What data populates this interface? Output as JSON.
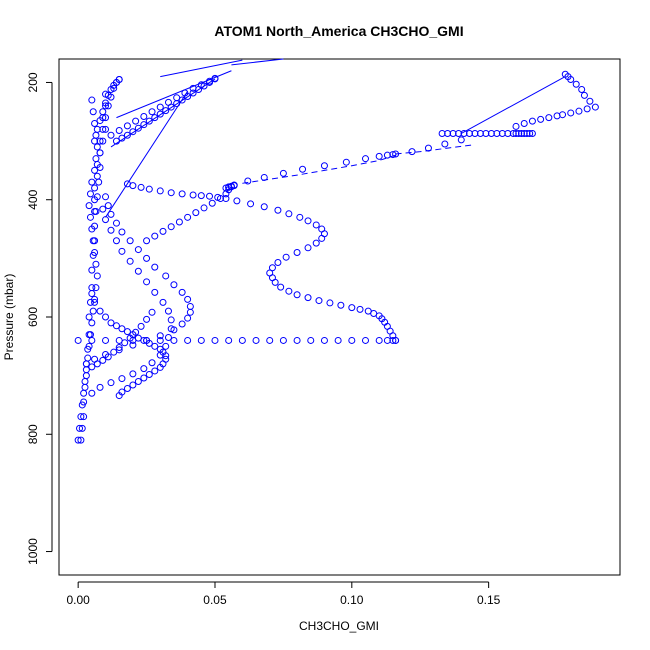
{
  "chart_data": {
    "type": "scatter",
    "title": "ATOM1 North_America CH3CHO_GMI",
    "xlabel": "CH3CHO_GMI",
    "ylabel": "Pressure (mbar)",
    "xlim": [
      -0.007,
      0.198
    ],
    "ylim": [
      1040,
      160
    ],
    "y_reversed": true,
    "grid": false,
    "legend": "none",
    "marker": "open-circle",
    "color": "#0000ff",
    "x_ticks": [
      0.0,
      0.05,
      0.1,
      0.15
    ],
    "x_tick_labels": [
      "0.00",
      "0.05",
      "0.10",
      "0.15"
    ],
    "y_ticks": [
      200,
      400,
      600,
      800,
      1000
    ],
    "y_tick_labels": [
      "200",
      "400",
      "600",
      "800",
      "1000"
    ],
    "series": [
      {
        "style": "points",
        "x": [
          0.001,
          0.0015,
          0.002,
          0.002,
          0.0025,
          0.003,
          0.003,
          0.0035,
          0.004,
          0.004,
          0.0045,
          0.005,
          0.005,
          0.0055,
          0.006,
          0.006,
          0.0065,
          0.007,
          0.0075,
          0.008,
          0.008,
          0.009,
          0.01,
          0.01,
          0.011,
          0.012,
          0.013,
          0.014,
          0.015
        ],
        "y": [
          810,
          790,
          770,
          745,
          720,
          700,
          680,
          655,
          630,
          600,
          575,
          550,
          520,
          495,
          470,
          445,
          420,
          395,
          370,
          345,
          320,
          300,
          280,
          260,
          240,
          225,
          210,
          200,
          195
        ]
      },
      {
        "style": "points",
        "x": [
          0.0,
          0.0005,
          0.001,
          0.0015,
          0.002,
          0.0025,
          0.003,
          0.0035,
          0.004,
          0.0045,
          0.005,
          0.0055,
          0.006,
          0.0065,
          0.007,
          0.0065,
          0.006,
          0.0055,
          0.005,
          0.0045,
          0.004,
          0.0045,
          0.005,
          0.006,
          0.0065,
          0.007,
          0.0065,
          0.006,
          0.0055,
          0.005
        ],
        "y": [
          810,
          790,
          770,
          750,
          730,
          710,
          690,
          670,
          650,
          630,
          610,
          590,
          570,
          550,
          530,
          510,
          490,
          470,
          450,
          430,
          410,
          390,
          370,
          350,
          330,
          310,
          290,
          270,
          250,
          230
        ]
      },
      {
        "style": "points",
        "x": [
          0.003,
          0.006,
          0.01,
          0.015,
          0.02,
          0.025,
          0.03,
          0.035,
          0.038,
          0.04,
          0.041,
          0.041,
          0.04,
          0.038,
          0.035,
          0.032,
          0.028,
          0.025,
          0.022,
          0.019,
          0.016,
          0.014,
          0.012,
          0.011,
          0.01
        ],
        "y": [
          680,
          672,
          664,
          656,
          648,
          640,
          632,
          622,
          612,
          602,
          592,
          582,
          570,
          558,
          545,
          530,
          515,
          500,
          485,
          470,
          455,
          440,
          425,
          410,
          395
        ]
      },
      {
        "style": "points",
        "x": [
          0.005,
          0.008,
          0.012,
          0.016,
          0.02,
          0.024,
          0.027,
          0.03,
          0.032,
          0.033,
          0.034,
          0.034,
          0.033,
          0.031,
          0.028,
          0.025,
          0.022,
          0.019,
          0.016,
          0.014,
          0.012,
          0.01,
          0.009
        ],
        "y": [
          730,
          720,
          712,
          705,
          697,
          688,
          678,
          665,
          650,
          635,
          620,
          605,
          590,
          575,
          558,
          540,
          522,
          505,
          488,
          470,
          452,
          434,
          416
        ]
      },
      {
        "style": "points",
        "x": [
          0.005,
          0.006,
          0.008,
          0.01,
          0.012,
          0.014,
          0.016,
          0.018,
          0.02,
          0.022,
          0.024,
          0.026,
          0.028,
          0.03,
          0.031,
          0.032,
          0.032,
          0.031,
          0.03,
          0.028,
          0.026,
          0.024,
          0.022,
          0.02,
          0.018,
          0.016,
          0.015
        ],
        "y": [
          560,
          575,
          590,
          600,
          610,
          615,
          620,
          625,
          630,
          636,
          640,
          645,
          650,
          655,
          660,
          666,
          672,
          680,
          686,
          692,
          698,
          704,
          710,
          716,
          722,
          728,
          734
        ]
      },
      {
        "style": "points",
        "x": [
          0.005,
          0.007,
          0.009,
          0.011,
          0.013,
          0.015,
          0.017,
          0.019,
          0.021,
          0.023,
          0.025,
          0.027
        ],
        "y": [
          685,
          680,
          674,
          668,
          660,
          652,
          644,
          636,
          626,
          616,
          604,
          592
        ]
      },
      {
        "style": "points",
        "x": [
          0.0,
          0.005,
          0.01,
          0.015,
          0.02,
          0.025,
          0.03,
          0.035,
          0.04,
          0.045,
          0.05,
          0.055,
          0.06,
          0.065,
          0.07,
          0.075,
          0.08,
          0.085,
          0.09,
          0.095,
          0.1,
          0.105,
          0.11,
          0.113,
          0.115,
          0.116
        ],
        "y": [
          640,
          640,
          640,
          640,
          640,
          640,
          640,
          640,
          640,
          640,
          640,
          640,
          640,
          640,
          640,
          640,
          640,
          640,
          640,
          640,
          640,
          640,
          640,
          640,
          640,
          640
        ]
      },
      {
        "style": "points",
        "x": [
          0.116,
          0.115,
          0.114,
          0.113,
          0.112,
          0.111,
          0.11,
          0.108,
          0.106,
          0.103,
          0.1,
          0.096,
          0.092,
          0.088,
          0.084,
          0.08,
          0.077,
          0.074,
          0.072,
          0.071,
          0.07,
          0.071,
          0.073,
          0.076,
          0.08,
          0.084,
          0.087,
          0.089,
          0.09,
          0.089,
          0.087,
          0.084,
          0.081,
          0.077,
          0.073,
          0.068,
          0.063,
          0.058,
          0.054,
          0.051,
          0.048,
          0.045,
          0.042,
          0.038,
          0.034,
          0.03,
          0.026,
          0.023,
          0.02,
          0.018
        ],
        "y": [
          640,
          632,
          624,
          616,
          609,
          603,
          598,
          594,
          590,
          587,
          584,
          580,
          576,
          572,
          567,
          562,
          556,
          549,
          541,
          533,
          525,
          516,
          507,
          498,
          490,
          482,
          474,
          466,
          458,
          450,
          443,
          436,
          430,
          424,
          418,
          412,
          407,
          402,
          398,
          396,
          394,
          393,
          392,
          390,
          388,
          385,
          382,
          379,
          376,
          373
        ]
      },
      {
        "style": "points",
        "x": [
          0.025,
          0.028,
          0.031,
          0.034,
          0.037,
          0.04,
          0.043,
          0.046,
          0.049,
          0.052,
          0.054,
          0.055,
          0.056,
          0.057
        ],
        "y": [
          470,
          462,
          454,
          446,
          438,
          430,
          422,
          414,
          406,
          398,
          390,
          383,
          378,
          375
        ]
      },
      {
        "style": "points",
        "x": [
          0.054,
          0.055,
          0.055,
          0.056,
          0.057
        ],
        "y": [
          380,
          379,
          378,
          377,
          376
        ]
      },
      {
        "style": "points",
        "x": [
          0.057,
          0.062,
          0.068,
          0.075,
          0.082,
          0.09,
          0.098,
          0.105,
          0.11,
          0.113,
          0.115,
          0.116,
          0.122,
          0.128,
          0.134,
          0.14
        ],
        "y": [
          375,
          368,
          362,
          355,
          348,
          342,
          336,
          330,
          326,
          324,
          323,
          322,
          318,
          312,
          305,
          298
        ]
      },
      {
        "style": "points",
        "x": [
          0.133,
          0.135,
          0.137,
          0.139,
          0.141,
          0.143,
          0.145,
          0.147,
          0.149,
          0.151,
          0.153,
          0.155,
          0.157,
          0.159,
          0.16,
          0.161,
          0.162,
          0.163,
          0.164,
          0.165,
          0.166
        ],
        "y": [
          287,
          287,
          287,
          287,
          287,
          287,
          287,
          287,
          287,
          287,
          287,
          287,
          287,
          287,
          287,
          287,
          287,
          287,
          287,
          287,
          287
        ]
      },
      {
        "style": "points",
        "x": [
          0.16,
          0.163,
          0.166,
          0.169,
          0.172,
          0.175,
          0.177,
          0.18,
          0.183,
          0.186,
          0.189,
          0.187,
          0.185,
          0.184,
          0.182,
          0.18,
          0.179,
          0.178
        ],
        "y": [
          275,
          270,
          266,
          263,
          260,
          257,
          255,
          252,
          249,
          245,
          242,
          232,
          222,
          212,
          203,
          195,
          190,
          186
        ]
      },
      {
        "style": "points",
        "x": [
          0.014,
          0.016,
          0.018,
          0.02,
          0.022,
          0.024,
          0.026,
          0.028,
          0.03,
          0.032,
          0.034,
          0.036,
          0.038,
          0.04,
          0.042,
          0.044,
          0.046,
          0.048,
          0.05
        ],
        "y": [
          300,
          295,
          290,
          284,
          278,
          272,
          266,
          260,
          254,
          248,
          242,
          236,
          230,
          224,
          218,
          212,
          206,
          200,
          194
        ]
      },
      {
        "style": "points",
        "x": [
          0.006,
          0.007,
          0.008,
          0.009,
          0.01,
          0.011,
          0.012,
          0.013,
          0.014,
          0.015
        ],
        "y": [
          300,
          280,
          265,
          250,
          235,
          222,
          212,
          205,
          200,
          195
        ]
      },
      {
        "style": "points",
        "x": [
          0.012,
          0.015,
          0.018,
          0.021,
          0.024,
          0.027,
          0.03,
          0.033,
          0.036,
          0.039,
          0.042,
          0.045,
          0.048,
          0.05
        ],
        "y": [
          290,
          282,
          274,
          266,
          258,
          250,
          242,
          234,
          226,
          218,
          210,
          204,
          198,
          193
        ]
      },
      {
        "style": "points",
        "x": [
          0.006,
          0.006,
          0.006,
          0.007,
          0.007,
          0.008,
          0.008,
          0.009,
          0.009,
          0.01,
          0.01
        ],
        "y": [
          420,
          400,
          380,
          360,
          340,
          320,
          300,
          280,
          260,
          240,
          220
        ]
      },
      {
        "style": "line",
        "x": [
          0.01,
          0.04
        ],
        "y": [
          430,
          215
        ]
      },
      {
        "style": "line",
        "x": [
          0.012,
          0.05
        ],
        "y": [
          310,
          194
        ]
      },
      {
        "style": "line",
        "x": [
          0.014,
          0.056
        ],
        "y": [
          260,
          180
        ]
      },
      {
        "style": "line",
        "x": [
          0.03,
          0.06
        ],
        "y": [
          190,
          162
        ]
      },
      {
        "style": "line",
        "x": [
          0.056,
          0.075
        ],
        "y": [
          170,
          160
        ]
      },
      {
        "style": "line",
        "x": [
          0.14,
          0.178
        ],
        "y": [
          287,
          190
        ]
      },
      {
        "style": "dashline",
        "x": [
          0.116,
          0.125,
          0.135,
          0.145
        ],
        "y": [
          322,
          318,
          312,
          306
        ]
      },
      {
        "style": "dashline",
        "x": [
          0.06,
          0.07,
          0.08,
          0.09,
          0.1,
          0.11,
          0.116
        ],
        "y": [
          372,
          365,
          358,
          350,
          342,
          333,
          324
        ]
      }
    ]
  }
}
